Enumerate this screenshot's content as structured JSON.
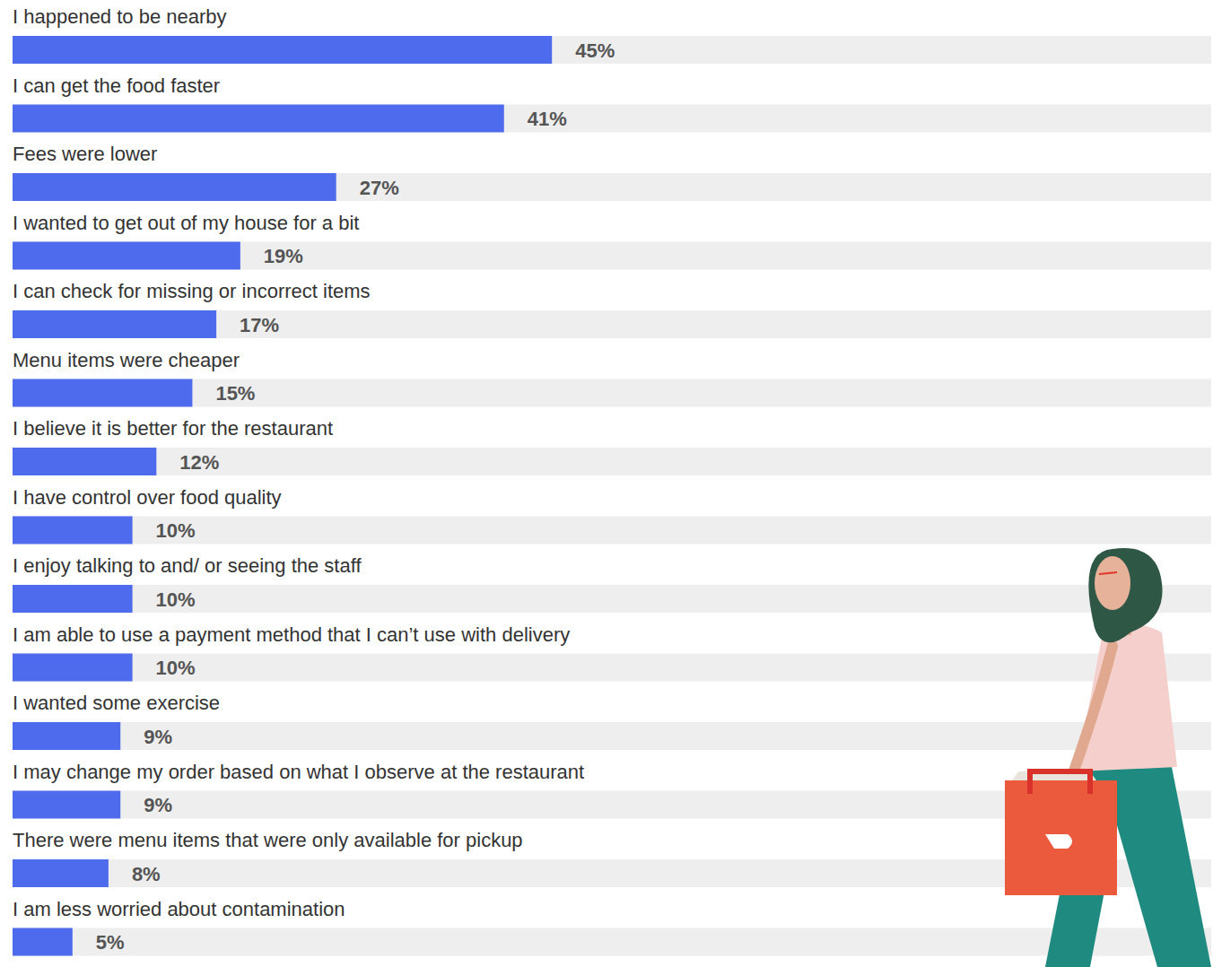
{
  "chart_data": {
    "type": "bar",
    "orientation": "horizontal",
    "categories": [
      "I happened to be nearby",
      "I can get the food faster",
      "Fees were lower",
      "I wanted to get out of my house for a bit",
      "I can check for missing or incorrect items",
      "Menu items were cheaper",
      "I believe it is better for the restaurant",
      "I have control over food quality",
      "I enjoy talking to and/ or seeing the staff",
      "I am able to use a payment method that I can’t use with delivery",
      "I wanted some exercise",
      "I may change my order based on what I observe at the restaurant",
      "There were menu items that were only available for pickup",
      "I am less worried about contamination"
    ],
    "values": [
      45,
      41,
      27,
      19,
      17,
      15,
      12,
      10,
      10,
      10,
      9,
      9,
      8,
      5
    ],
    "value_labels": [
      "45%",
      "41%",
      "27%",
      "19%",
      "17%",
      "15%",
      "12%",
      "10%",
      "10%",
      "10%",
      "9%",
      "9%",
      "8%",
      "5%"
    ],
    "color": "#4f6bed",
    "xlim": [
      0,
      100
    ],
    "tick_labels": false,
    "grid": false,
    "data_labels": true
  }
}
